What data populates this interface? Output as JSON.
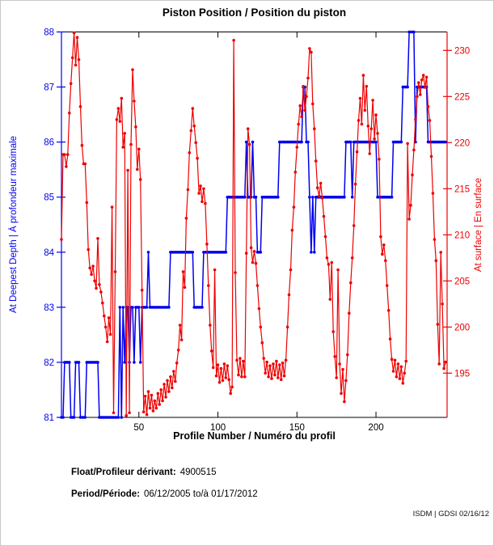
{
  "title": "Piston Position / Position du piston",
  "footer": {
    "float_label": "Float/Profileur dérivant:",
    "float_value": "4900515",
    "period_label": "Period/Période:",
    "period_value": "06/12/2005 to/à  01/17/2012",
    "watermark": "ISDM | GDSI 02/16/12"
  },
  "chart_data": {
    "type": "line",
    "title": "Piston Position / Position du piston",
    "xlabel": "Profile Number / Numéro du profil",
    "xlim": [
      1,
      245
    ],
    "x_ticks": [
      50,
      100,
      150,
      200
    ],
    "grid": false,
    "legend": "none",
    "left_axis": {
      "label": "At Deepest Depth | À profondeur maximale",
      "color": "#0000ee",
      "ylim": [
        81,
        88
      ],
      "ticks": [
        81,
        82,
        83,
        84,
        85,
        86,
        87,
        88
      ]
    },
    "right_axis": {
      "label": "At surface | En surface",
      "color": "#ee0000",
      "ylim": [
        190.2,
        232.0
      ],
      "ticks": [
        195,
        200,
        205,
        210,
        215,
        220,
        225,
        230
      ]
    },
    "series": [
      {
        "name": "At Deepest Depth / À profondeur maximale",
        "axis": "left",
        "color": "#0000ee",
        "marker": "dot",
        "x_start": 1,
        "values": [
          81,
          81,
          82,
          82,
          82,
          82,
          81,
          81,
          81,
          82,
          82,
          82,
          81,
          81,
          81,
          81,
          82,
          82,
          82,
          82,
          82,
          82,
          82,
          82,
          81,
          81,
          81,
          81,
          81,
          81,
          81,
          81,
          81,
          81,
          81,
          81,
          81,
          83,
          81,
          83,
          82,
          83,
          83,
          82,
          83,
          83,
          82,
          83,
          83,
          83,
          82,
          83,
          83,
          83,
          83,
          84,
          83,
          83,
          83,
          83,
          83,
          83,
          83,
          83,
          83,
          83,
          83,
          83,
          83,
          84,
          84,
          84,
          84,
          84,
          84,
          84,
          84,
          84,
          84,
          84,
          84,
          84,
          84,
          84,
          83,
          83,
          83,
          83,
          83,
          83,
          84,
          84,
          84,
          84,
          84,
          84,
          84,
          84,
          84,
          84,
          84,
          84,
          84,
          84,
          84,
          85,
          85,
          85,
          85,
          85,
          85,
          85,
          85,
          85,
          85,
          85,
          85,
          86,
          85,
          85,
          85,
          86,
          85,
          85,
          84,
          84,
          84,
          85,
          85,
          85,
          85,
          85,
          85,
          85,
          85,
          85,
          85,
          85,
          86,
          86,
          86,
          86,
          86,
          86,
          86,
          86,
          86,
          86,
          86,
          86,
          86,
          86,
          86,
          87,
          87,
          86,
          86,
          85,
          84,
          85,
          84,
          85,
          85,
          85,
          85,
          85,
          85,
          85,
          85,
          85,
          85,
          85,
          85,
          85,
          85,
          85,
          85,
          85,
          85,
          85,
          86,
          86,
          86,
          86,
          85,
          86,
          86,
          86,
          86,
          86,
          86,
          86,
          86,
          86,
          86,
          86,
          86,
          86,
          86,
          86,
          85,
          85,
          85,
          85,
          85,
          85,
          85,
          85,
          85,
          85,
          86,
          86,
          86,
          86,
          86,
          86,
          87,
          87,
          87,
          87,
          88,
          88,
          88,
          88,
          86,
          87,
          87,
          87,
          87,
          87,
          87,
          87,
          86,
          86,
          86,
          86,
          86,
          86,
          86,
          86,
          86,
          86,
          86,
          86
        ]
      },
      {
        "name": "At surface / En surface",
        "axis": "right",
        "color": "#ee0000",
        "marker": "dot",
        "x_start": 1,
        "values": [
          209.5,
          218.7,
          218.7,
          217.4,
          218.7,
          223.2,
          226.4,
          229.2,
          231.9,
          228.4,
          231.4,
          229.0,
          223.9,
          219.7,
          217.7,
          217.7,
          213.5,
          208.4,
          206.4,
          205.7,
          206.6,
          205.0,
          204.2,
          209.6,
          204.6,
          203.8,
          202.6,
          201.2,
          200.0,
          198.4,
          201.0,
          199.2,
          213.0,
          190.7,
          206.0,
          222.5,
          223.7,
          222.3,
          224.8,
          219.5,
          221.0,
          190.4,
          217.0,
          190.7,
          219.8,
          227.9,
          224.5,
          221.7,
          217.1,
          219.3,
          216.0,
          204.0,
          190.8,
          192.5,
          190.5,
          193.0,
          191.2,
          192.6,
          190.9,
          192.0,
          191.2,
          192.8,
          191.6,
          193.2,
          192.0,
          193.8,
          192.4,
          194.2,
          193.0,
          194.6,
          193.4,
          195.2,
          194.1,
          196.1,
          197.5,
          200.2,
          198.6,
          206.0,
          204.3,
          211.8,
          214.9,
          218.9,
          221.3,
          223.7,
          221.8,
          220.0,
          218.3,
          214.5,
          215.3,
          213.6,
          215.0,
          213.4,
          209.0,
          204.5,
          200.2,
          197.4,
          195.6,
          206.2,
          194.7,
          195.9,
          194.0,
          195.5,
          194.2,
          196.0,
          194.5,
          195.8,
          194.3,
          192.8,
          193.5,
          231.1,
          205.9,
          196.4,
          194.8,
          196.6,
          194.6,
          196.3,
          194.6,
          208.0,
          221.5,
          219.8,
          208.6,
          207.0,
          208.2,
          206.9,
          204.5,
          202.0,
          200.0,
          198.3,
          196.6,
          195.0,
          196.2,
          194.6,
          195.8,
          194.4,
          196.0,
          194.8,
          196.3,
          194.5,
          195.9,
          194.3,
          196.1,
          194.7,
          196.4,
          200.0,
          203.5,
          206.2,
          210.5,
          213.0,
          216.8,
          219.5,
          222.0,
          224.0,
          222.8,
          226.1,
          223.5,
          225.0,
          227.0,
          230.2,
          229.8,
          224.2,
          221.5,
          218.0,
          215.1,
          214.2,
          215.6,
          214.0,
          212.0,
          209.8,
          207.5,
          206.8,
          203.0,
          207.0,
          199.5,
          196.8,
          194.5,
          206.2,
          196.0,
          192.8,
          195.4,
          191.9,
          194.2,
          197.0,
          201.5,
          204.8,
          207.5,
          211.0,
          215.5,
          219.0,
          222.4,
          224.8,
          222.0,
          227.3,
          223.5,
          226.1,
          221.8,
          218.8,
          221.5,
          224.6,
          220.4,
          223.0,
          221.0,
          218.2,
          209.8,
          207.9,
          208.9,
          207.2,
          204.5,
          201.8,
          198.7,
          196.5,
          195.2,
          196.4,
          194.6,
          196.0,
          194.4,
          195.7,
          193.9,
          195.0,
          196.3,
          219.9,
          211.7,
          213.2,
          216.5,
          219.2,
          222.5,
          225.0,
          226.5,
          225.2,
          226.8,
          227.3,
          226.0,
          227.1,
          223.9,
          222.4,
          218.5,
          214.5,
          209.5,
          207.2,
          200.3,
          196.0,
          208.1,
          202.5,
          195.5,
          196.2
        ]
      }
    ]
  }
}
